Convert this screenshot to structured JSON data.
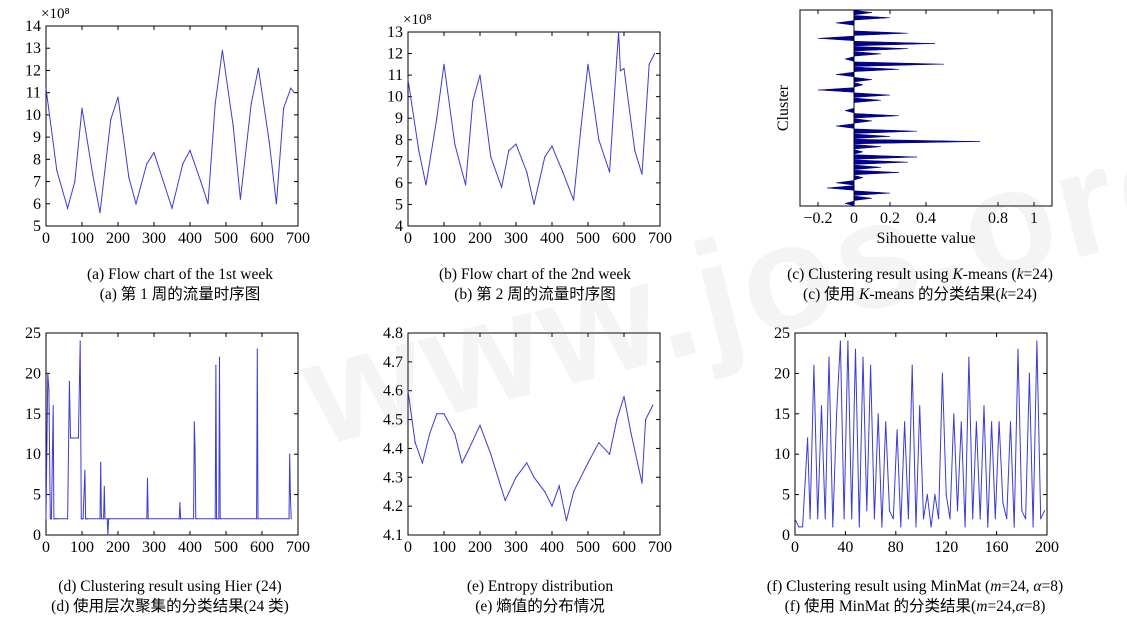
{
  "watermark": "www.jos.org.cn",
  "colors": {
    "line": "#3b3bd6",
    "fill": "#00008b"
  },
  "captions": [
    {
      "en": "(a) Flow chart of the 1st week",
      "zh": "(a) 第 1 周的流量时序图"
    },
    {
      "en": "(b) Flow chart of the 2nd week",
      "zh": "(b) 第 2 周的流量时序图"
    },
    {
      "en_pre": "(c) Clustering result using ",
      "en_it": "K",
      "en_post": "-means (",
      "en_k": "k",
      "en_end": "=24)",
      "zh_pre": "(c) 使用 ",
      "zh_it": "K",
      "zh_mid": "-means 的分类结果(",
      "zh_k": "k",
      "zh_end": "=24)"
    },
    {
      "en": "(d) Clustering result using Hier (24)",
      "zh": "(d) 使用层次聚集的分类结果(24 类)"
    },
    {
      "en": "(e) Entropy distribution",
      "zh": "(e) 熵值的分布情况"
    },
    {
      "en_pre": "(f) Clustering result using MinMat (",
      "en_m": "m",
      "en_mid": "=24, ",
      "en_a": "α",
      "en_end": "=8)",
      "zh_pre": "(f) 使用 MinMat 的分类结果(",
      "zh_m": "m",
      "zh_mid": "=24,",
      "zh_a": "α",
      "zh_end": "=8)"
    }
  ],
  "chart_data": [
    {
      "id": "a",
      "type": "line",
      "y_exponent_label": "×10⁸",
      "xlim": [
        0,
        700
      ],
      "ylim": [
        5,
        14
      ],
      "xticks": [
        0,
        100,
        200,
        300,
        400,
        500,
        600,
        700
      ],
      "yticks": [
        5,
        6,
        7,
        8,
        9,
        10,
        11,
        12,
        13,
        14
      ],
      "x": [
        0,
        30,
        60,
        80,
        100,
        130,
        150,
        180,
        200,
        230,
        250,
        280,
        300,
        330,
        350,
        380,
        400,
        430,
        450,
        470,
        490,
        520,
        540,
        570,
        590,
        620,
        640,
        660,
        680,
        690
      ],
      "y": [
        11.2,
        7.5,
        5.8,
        7.0,
        10.3,
        7.3,
        5.6,
        9.8,
        10.8,
        7.2,
        6.0,
        7.8,
        8.3,
        6.8,
        5.8,
        7.8,
        8.4,
        7.0,
        6.0,
        10.5,
        12.9,
        9.5,
        6.2,
        10.5,
        12.1,
        8.8,
        6.0,
        10.3,
        11.2,
        11.0
      ]
    },
    {
      "id": "b",
      "type": "line",
      "y_exponent_label": "×10⁸",
      "xlim": [
        0,
        700
      ],
      "ylim": [
        4,
        13
      ],
      "xticks": [
        0,
        100,
        200,
        300,
        400,
        500,
        600,
        700
      ],
      "yticks": [
        4,
        5,
        6,
        7,
        8,
        9,
        10,
        11,
        12,
        13
      ],
      "x": [
        0,
        30,
        50,
        80,
        100,
        130,
        160,
        180,
        200,
        230,
        260,
        280,
        300,
        330,
        350,
        380,
        400,
        430,
        460,
        480,
        500,
        530,
        560,
        580,
        585,
        590,
        600,
        630,
        650,
        670,
        685
      ],
      "y": [
        10.8,
        7.5,
        5.9,
        9.0,
        11.5,
        7.8,
        5.9,
        9.8,
        11.0,
        7.2,
        5.8,
        7.5,
        7.8,
        6.5,
        5.0,
        7.2,
        7.7,
        6.5,
        5.2,
        8.5,
        11.5,
        8.0,
        6.5,
        11.8,
        13.0,
        11.2,
        11.3,
        7.5,
        6.4,
        11.5,
        12.0
      ]
    },
    {
      "id": "c",
      "type": "silhouette",
      "xlabel": "Sihouette value",
      "ylabel": "Cluster",
      "xlim": [
        -0.3,
        1.1
      ],
      "xticks": [
        -0.2,
        0,
        0.2,
        0.4,
        0.8,
        1
      ],
      "xticklabels": [
        "−0.2",
        "0",
        "0.2",
        "0.4",
        "0.8",
        "1"
      ],
      "bars": [
        0.1,
        0.2,
        -0.1,
        0.0,
        0.3,
        -0.2,
        0.45,
        0.3,
        0.15,
        -0.05,
        0.5,
        0.25,
        -0.1,
        0.1,
        0.05,
        -0.2,
        0.2,
        0.15,
        0.0,
        -0.05,
        0.25,
        0.1,
        -0.1,
        0.35,
        0.2,
        0.7,
        0.15,
        0.05,
        0.35,
        0.3,
        0.15,
        0.25,
        0.05,
        -0.1,
        -0.15,
        0.2,
        0.1,
        -0.05
      ]
    },
    {
      "id": "d",
      "type": "line",
      "xlim": [
        0,
        700
      ],
      "ylim": [
        0,
        25
      ],
      "xticks": [
        0,
        100,
        200,
        300,
        400,
        500,
        600,
        700
      ],
      "yticks": [
        0,
        5,
        10,
        15,
        20,
        25
      ],
      "x": [
        0,
        5,
        8,
        12,
        15,
        20,
        22,
        25,
        28,
        33,
        60,
        65,
        68,
        72,
        75,
        90,
        95,
        98,
        100,
        103,
        108,
        110,
        112,
        115,
        150,
        152,
        154,
        160,
        162,
        164,
        170,
        172,
        174,
        178,
        280,
        282,
        284,
        370,
        372,
        374,
        410,
        412,
        414,
        416,
        418,
        470,
        472,
        474,
        476,
        480,
        482,
        484,
        585,
        587,
        589,
        675,
        677,
        679,
        681
      ],
      "y": [
        2,
        20,
        18,
        2,
        2,
        16,
        2,
        2,
        2,
        2,
        2,
        19,
        12,
        12,
        12,
        12,
        24,
        2,
        2,
        2,
        8,
        2,
        2,
        2,
        2,
        9,
        2,
        2,
        6,
        2,
        2,
        0,
        2,
        2,
        2,
        7,
        2,
        2,
        4,
        2,
        2,
        14,
        11,
        2,
        2,
        2,
        21,
        2,
        2,
        2,
        22,
        2,
        2,
        23,
        2,
        2,
        10,
        5,
        2
      ]
    },
    {
      "id": "e",
      "type": "line",
      "xlim": [
        0,
        700
      ],
      "ylim": [
        4.1,
        4.8
      ],
      "xticks": [
        0,
        100,
        200,
        300,
        400,
        500,
        600,
        700
      ],
      "yticks": [
        4.1,
        4.2,
        4.3,
        4.4,
        4.5,
        4.6,
        4.7,
        4.8
      ],
      "yticklabels": [
        "4.1",
        "4.2",
        "4.3",
        "4.4",
        "4.5",
        "4.6",
        "4.7",
        "4.8"
      ],
      "x": [
        0,
        20,
        40,
        60,
        80,
        100,
        130,
        150,
        170,
        200,
        230,
        250,
        270,
        300,
        330,
        350,
        380,
        400,
        420,
        440,
        460,
        500,
        530,
        560,
        580,
        600,
        620,
        650,
        660,
        680
      ],
      "y": [
        4.6,
        4.42,
        4.35,
        4.45,
        4.52,
        4.52,
        4.45,
        4.35,
        4.4,
        4.48,
        4.38,
        4.3,
        4.22,
        4.3,
        4.35,
        4.3,
        4.25,
        4.2,
        4.27,
        4.15,
        4.25,
        4.35,
        4.42,
        4.38,
        4.5,
        4.58,
        4.45,
        4.28,
        4.5,
        4.55
      ]
    },
    {
      "id": "f",
      "type": "line",
      "xlim": [
        0,
        200
      ],
      "ylim": [
        0,
        25
      ],
      "xticks": [
        0,
        40,
        80,
        120,
        160,
        200
      ],
      "yticks": [
        0,
        5,
        10,
        15,
        20,
        25
      ],
      "x": [
        0,
        3,
        6,
        10,
        12,
        15,
        18,
        21,
        24,
        27,
        30,
        33,
        36,
        39,
        42,
        45,
        48,
        51,
        54,
        57,
        60,
        63,
        66,
        69,
        72,
        75,
        78,
        81,
        84,
        87,
        90,
        93,
        96,
        99,
        102,
        105,
        108,
        111,
        114,
        117,
        120,
        123,
        126,
        129,
        132,
        135,
        138,
        141,
        144,
        147,
        150,
        153,
        156,
        159,
        162,
        165,
        168,
        171,
        174,
        177,
        180,
        183,
        186,
        189,
        192,
        195,
        198
      ],
      "y": [
        2,
        1,
        1,
        12,
        2,
        21,
        2,
        16,
        2,
        22,
        1,
        15,
        24,
        2,
        24,
        2,
        23,
        1,
        22,
        3,
        21,
        2,
        15,
        1,
        14,
        3,
        2,
        13,
        1,
        14,
        2,
        21,
        1,
        16,
        2,
        5,
        1,
        5,
        2,
        20,
        5,
        2,
        15,
        3,
        14,
        1,
        22,
        2,
        14,
        2,
        16,
        1,
        14,
        2,
        14,
        4,
        2,
        14,
        1,
        23,
        3,
        2,
        20,
        1,
        24,
        2,
        3
      ]
    }
  ]
}
